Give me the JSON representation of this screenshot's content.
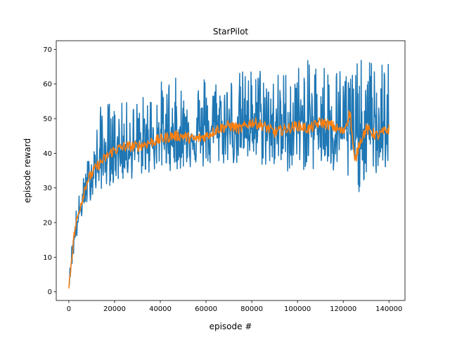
{
  "chart_data": {
    "type": "line",
    "title": "StarPilot",
    "xlabel": "episode #",
    "ylabel": "episode reward",
    "xlim": [
      -5500,
      147000
    ],
    "ylim": [
      -2.5,
      72.5
    ],
    "xticks": [
      0,
      20000,
      40000,
      60000,
      80000,
      100000,
      120000,
      140000
    ],
    "xtick_labels": [
      "0",
      "20000",
      "40000",
      "60000",
      "80000",
      "100000",
      "120000",
      "140000"
    ],
    "yticks": [
      0,
      10,
      20,
      30,
      40,
      50,
      60,
      70
    ],
    "ytick_labels": [
      "0",
      "10",
      "20",
      "30",
      "40",
      "50",
      "60",
      "70"
    ],
    "grid": false,
    "legend": "none",
    "series": [
      {
        "role": "raw episode reward",
        "color": "#1f77b4",
        "x": [
          0,
          2000,
          4000,
          6000,
          8000,
          10000,
          15000,
          20000,
          25000,
          30000,
          35000,
          40000,
          45000,
          50000,
          55000,
          60000,
          65000,
          70000,
          75000,
          80000,
          85000,
          90000,
          95000,
          100000,
          105000,
          110000,
          115000,
          120000,
          125000,
          130000,
          135000,
          140000
        ],
        "values": [
          2,
          14,
          21,
          26,
          31,
          34,
          38,
          40,
          41,
          42,
          43,
          44,
          44,
          45,
          45,
          46,
          47,
          47,
          47,
          48,
          48,
          47,
          47,
          48,
          48,
          48,
          47,
          47,
          44,
          47,
          46,
          46
        ],
        "min": [
          1,
          10,
          17,
          22,
          25,
          27,
          30,
          31,
          32,
          33,
          34,
          35,
          35,
          35,
          36,
          35,
          36,
          37,
          36,
          37,
          36,
          35,
          34,
          36,
          34,
          36,
          33,
          34,
          26,
          33,
          33,
          36
        ],
        "max": [
          3,
          21,
          27,
          32,
          38,
          42,
          57,
          54,
          55,
          56,
          58,
          61,
          63,
          60,
          61,
          64,
          62,
          63,
          64,
          65,
          66,
          63,
          65,
          66,
          67,
          68,
          66,
          66,
          67,
          67,
          68,
          66
        ]
      },
      {
        "role": "smoothed episode reward",
        "color": "#ff7f0e",
        "x": [
          0,
          1000,
          2000,
          3000,
          4000,
          5000,
          6000,
          7000,
          8000,
          10000,
          12000,
          15000,
          18000,
          20000,
          25000,
          30000,
          35000,
          40000,
          45000,
          50000,
          55000,
          60000,
          65000,
          70000,
          75000,
          80000,
          85000,
          90000,
          95000,
          100000,
          105000,
          110000,
          115000,
          120000,
          123000,
          125000,
          127000,
          130000,
          135000,
          140000
        ],
        "values": [
          1,
          8,
          15,
          19,
          22,
          25,
          27,
          30,
          32,
          34,
          36,
          38,
          40,
          41,
          42,
          42,
          43,
          44,
          45,
          45,
          44,
          45,
          47,
          48,
          47,
          49,
          48,
          46,
          47,
          48,
          47,
          49,
          48,
          46,
          52,
          37,
          43,
          47,
          45,
          47
        ]
      }
    ]
  }
}
